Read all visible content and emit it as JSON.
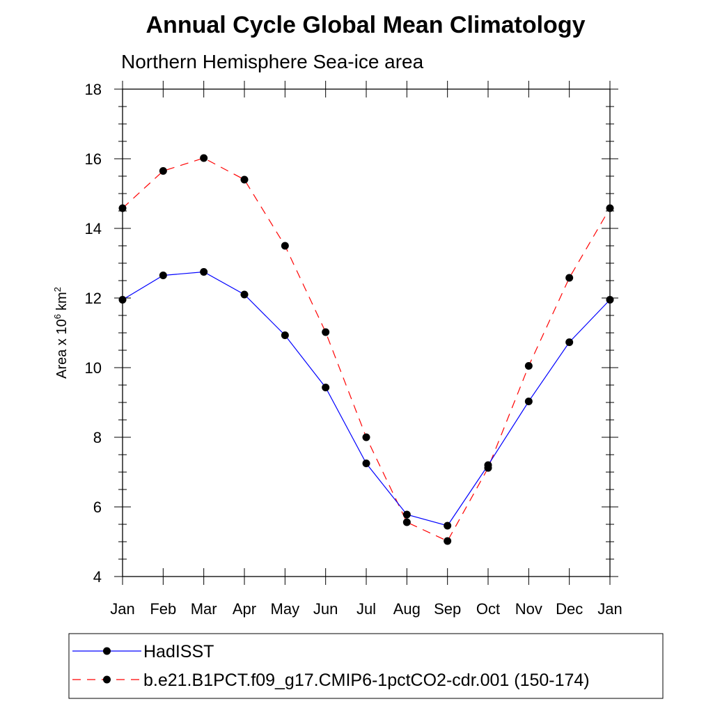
{
  "chart_data": {
    "type": "line",
    "title": "Annual Cycle Global Mean Climatology",
    "subtitle": "Northern Hemisphere Sea-ice area",
    "ylabel": "Area x 10",
    "ylabel_exponent": "6",
    "ylabel_unit": "km",
    "ylabel_unit_exponent": "2",
    "xlabel": "",
    "categories": [
      "Jan",
      "Feb",
      "Mar",
      "Apr",
      "May",
      "Jun",
      "Jul",
      "Aug",
      "Sep",
      "Oct",
      "Nov",
      "Dec",
      "Jan"
    ],
    "ylim": [
      4,
      18
    ],
    "yticks": [
      4,
      6,
      8,
      10,
      12,
      14,
      16,
      18
    ],
    "grid": false,
    "legend_position": "bottom",
    "series": [
      {
        "name": "HadISST",
        "color": "#0000ff",
        "style": "solid",
        "values": [
          11.95,
          12.65,
          12.75,
          12.1,
          10.93,
          9.43,
          7.25,
          5.78,
          5.46,
          7.2,
          9.03,
          10.73,
          11.95
        ]
      },
      {
        "name": "b.e21.B1PCT.f09_g17.CMIP6-1pctCO2-cdr.001 (150-174)",
        "color": "#ff0000",
        "style": "dashed",
        "values": [
          14.58,
          15.65,
          16.02,
          15.4,
          13.5,
          11.02,
          8.0,
          5.56,
          5.02,
          7.12,
          10.05,
          12.58,
          14.58
        ]
      }
    ]
  }
}
